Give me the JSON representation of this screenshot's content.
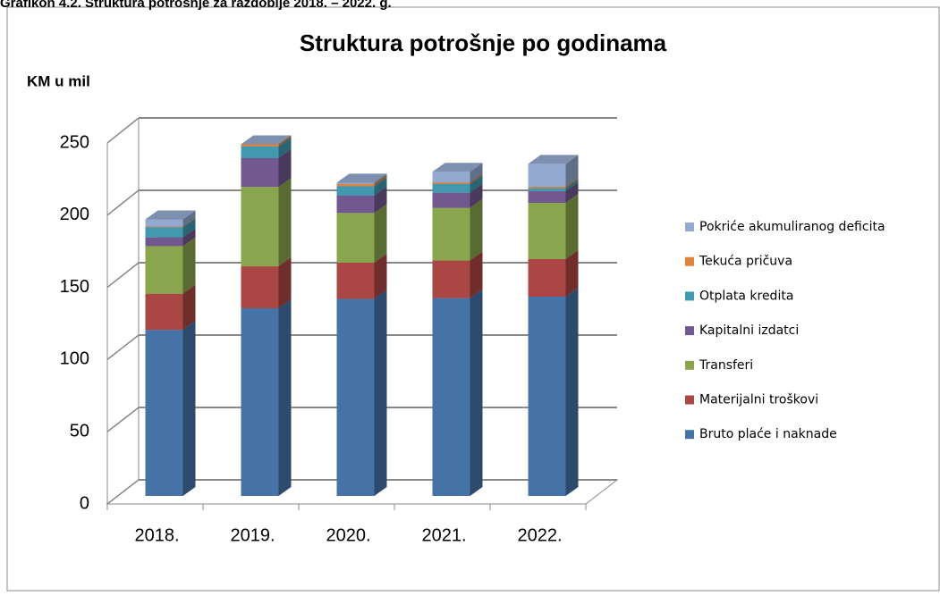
{
  "caption": "Grafikon 4.2. Struktura potrošnje za razdoblje 2018. – 2022. g.",
  "chart_data": {
    "type": "bar3d_stacked",
    "title": "Struktura potrošnje po godinama",
    "y_label": "KM u mil",
    "categories": [
      "2018.",
      "2019.",
      "2020.",
      "2021.",
      "2022."
    ],
    "series": [
      {
        "name": "Bruto plaće i naknade",
        "color": "#4572a7",
        "values": [
          115,
          130,
          136.5,
          137,
          138
        ]
      },
      {
        "name": "Materijalni troškovi",
        "color": "#aa4643",
        "values": [
          25,
          29,
          25,
          26,
          26
        ]
      },
      {
        "name": "Transferi",
        "color": "#89a54e",
        "values": [
          33,
          55,
          34.5,
          36.5,
          39
        ]
      },
      {
        "name": "Kapitalni izdatci",
        "color": "#71588f",
        "values": [
          6,
          20,
          12,
          10.5,
          8
        ]
      },
      {
        "name": "Otplata kredita",
        "color": "#4198af",
        "values": [
          7,
          8,
          6.5,
          6,
          2
        ]
      },
      {
        "name": "Tekuća pričuva",
        "color": "#db843d",
        "values": [
          0.5,
          1.5,
          1.5,
          1,
          1
        ]
      },
      {
        "name": "Pokriće akumuliranog deficita",
        "color": "#93a9cf",
        "values": [
          5,
          0,
          1,
          7.5,
          16
        ]
      }
    ],
    "ylim": [
      0,
      250
    ],
    "yticks": [
      0,
      50,
      100,
      150,
      200,
      250
    ],
    "grid": true,
    "legend": "right"
  }
}
